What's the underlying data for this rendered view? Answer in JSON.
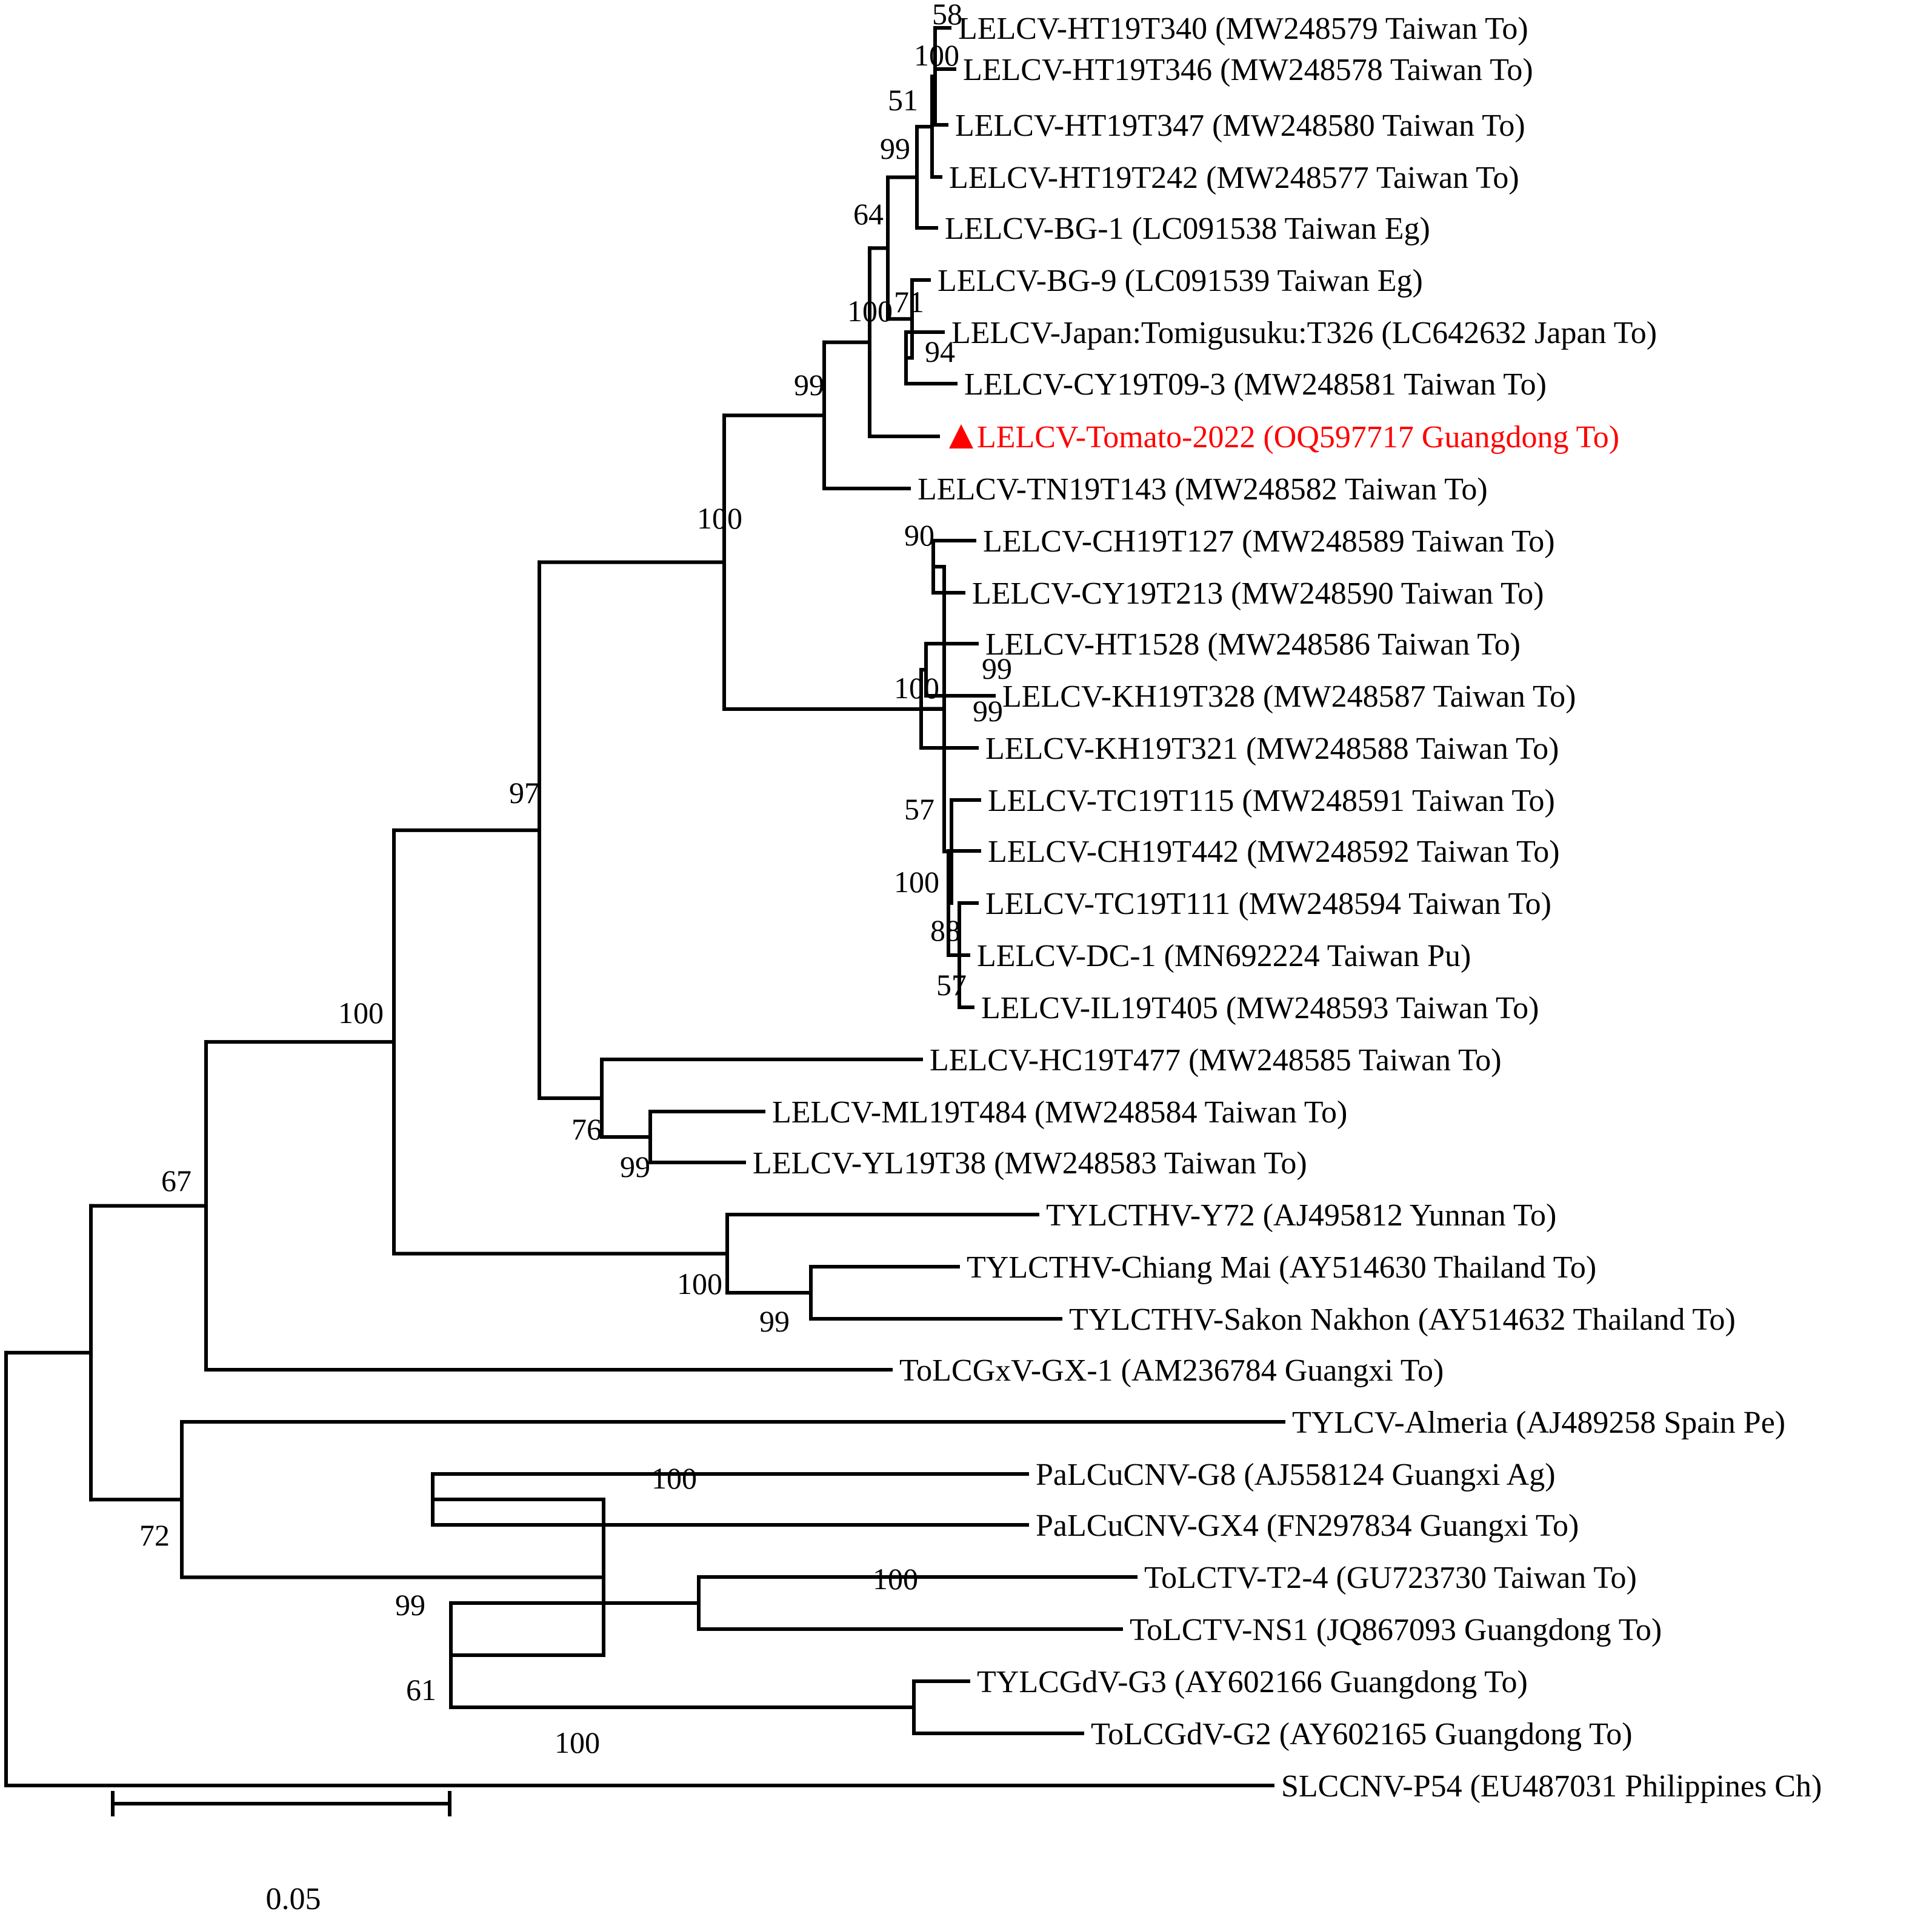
{
  "taxa": [
    "LELCV-HT19T340 (MW248579 Taiwan To)",
    "LELCV-HT19T346 (MW248578 Taiwan To)",
    "LELCV-HT19T347 (MW248580 Taiwan To)",
    "LELCV-HT19T242 (MW248577 Taiwan To)",
    "LELCV-BG-1 (LC091538 Taiwan Eg)",
    "LELCV-BG-9 (LC091539 Taiwan Eg)",
    "LELCV-Japan:Tomigusuku:T326 (LC642632 Japan To)",
    "LELCV-CY19T09-3 (MW248581 Taiwan To)",
    "LELCV-Tomato-2022 (OQ597717 Guangdong To)",
    "LELCV-TN19T143 (MW248582 Taiwan To)",
    "LELCV-CH19T127 (MW248589 Taiwan To)",
    "LELCV-CY19T213 (MW248590 Taiwan To)",
    "LELCV-HT1528 (MW248586 Taiwan To)",
    "LELCV-KH19T328 (MW248587 Taiwan To)",
    "LELCV-KH19T321 (MW248588 Taiwan To)",
    "LELCV-TC19T115 (MW248591 Taiwan To)",
    "LELCV-CH19T442 (MW248592 Taiwan To)",
    "LELCV-TC19T111 (MW248594 Taiwan To)",
    "LELCV-DC-1 (MN692224 Taiwan Pu)",
    "LELCV-IL19T405 (MW248593 Taiwan To)",
    "LELCV-HC19T477 (MW248585 Taiwan To)",
    "LELCV-ML19T484 (MW248584 Taiwan To)",
    "LELCV-YL19T38 (MW248583 Taiwan To)",
    "TYLCTHV-Y72 (AJ495812 Yunnan To)",
    "TYLCTHV-Chiang Mai (AY514630 Thailand To)",
    "TYLCTHV-Sakon Nakhon (AY514632 Thailand To)",
    "ToLCGxV-GX-1 (AM236784 Guangxi To)",
    "TYLCV-Almeria (AJ489258 Spain Pe)",
    "PaLCuCNV-G8 (AJ558124 Guangxi Ag)",
    "PaLCuCNV-GX4 (FN297834 Guangxi To)",
    "ToLCTV-T2-4 (GU723730 Taiwan To)",
    "ToLCTV-NS1 (JQ867093 Guangdong To)",
    "TYLCGdV-G3 (AY602166 Guangdong To)",
    "ToLCGdV-G2 (AY602165 Guangdong To)",
    "SLCCNV-P54 (EU487031 Philippines Ch)"
  ],
  "highlight": {
    "taxon_index": 8,
    "color": "#ff0000",
    "marker": "triangle"
  },
  "bootstrap": [
    "58",
    "100",
    "51",
    "99",
    "64",
    "71",
    "94",
    "100",
    "99",
    "100",
    "90",
    "99",
    "100",
    "99",
    "57",
    "100",
    "88",
    "57",
    "97",
    "76",
    "99",
    "100",
    "100",
    "99",
    "67",
    "100",
    "72",
    "99",
    "100",
    "61",
    "100"
  ],
  "scale_bar": {
    "label": "0.05",
    "length": 0.05
  }
}
